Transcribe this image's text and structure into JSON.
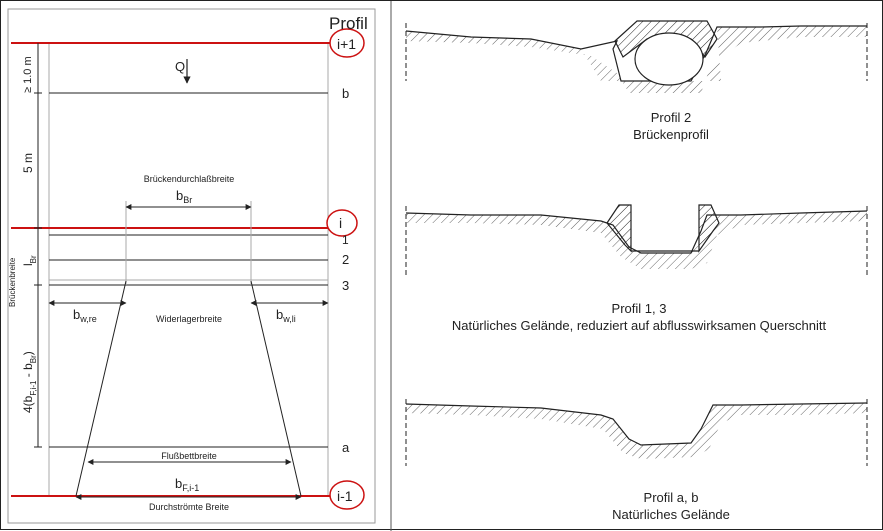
{
  "plan": {
    "heading": "Profil",
    "flow_label": "Q",
    "dim_top": "≥ 1.0 m",
    "dim_mid": "5 m",
    "bridge_width_vertical": "Brückenbreite",
    "l_br_main": "l",
    "l_br_sub": "Br",
    "dim_lower_main": "4(b",
    "dim_lower_sub1": "F,i-1",
    "dim_lower_mid": " - b",
    "dim_lower_sub2": "Br",
    "dim_lower_end": ")",
    "opening_width": "Brückendurchlaßbreite",
    "b_br_main": "b",
    "b_br_sub": "Br",
    "bw_re_main": "b",
    "bw_re_sub": "w,re",
    "abutment_width": "Widerlagerbreite",
    "bw_li_main": "b",
    "bw_li_sub": "w,li",
    "riverbed_width": "Flußbettbreite",
    "bf_main": "b",
    "bf_sub": "F,i-1",
    "flow_width": "Durchströmte Breite",
    "profiles": {
      "i_plus_1": "i+1",
      "b": "b",
      "i": "i",
      "p1": "1",
      "p2": "2",
      "p3": "3",
      "a": "a",
      "i_minus_1": "i-1"
    }
  },
  "captions": {
    "profile2_title": "Profil 2",
    "profile2_desc": "Brückenprofil",
    "profile13_title": "Profil 1, 3",
    "profile13_desc": "Natürliches Gelände, reduziert auf abflusswirksamen Querschnitt",
    "profileab_title": "Profil a, b",
    "profileab_desc": "Natürliches Gelände"
  },
  "colors": {
    "highlight": "#cc1111",
    "line": "#222222",
    "frame": "#9a9a9a"
  }
}
